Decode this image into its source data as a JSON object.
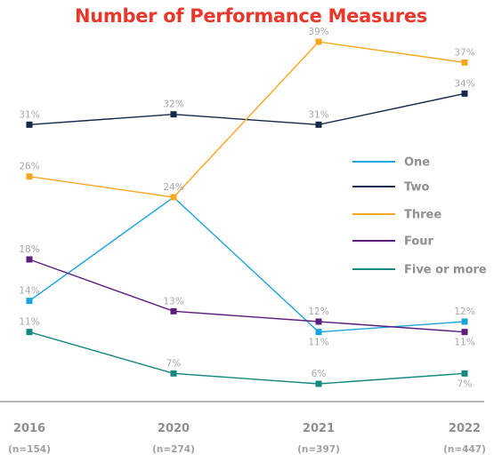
{
  "chart_data": {
    "type": "line",
    "title": "Number of Performance Measures",
    "categories": [
      "2016",
      "2020",
      "2021",
      "2022"
    ],
    "sample_sizes": [
      "(n=154)",
      "(n=274)",
      "(n=397)",
      "(n=447)"
    ],
    "y_unit": "%",
    "ylim": [
      0,
      45
    ],
    "grid": false,
    "legend_position": "right",
    "series": [
      {
        "name": "One",
        "color": "#1ba3dd",
        "values": [
          14,
          24,
          11,
          12
        ],
        "labels": [
          "14%",
          "24%",
          "11%",
          "12%"
        ],
        "label_pos": [
          "above",
          "above",
          "below",
          "above"
        ]
      },
      {
        "name": "Two",
        "color": "#13294b",
        "values": [
          31,
          32,
          31,
          34
        ],
        "labels": [
          "31%",
          "32%",
          "31%",
          "34%"
        ],
        "label_pos": [
          "above",
          "above",
          "above",
          "above"
        ]
      },
      {
        "name": "Three",
        "color": "#f6a623",
        "values": [
          26,
          24,
          39,
          37
        ],
        "labels": [
          "26%",
          "",
          "39%",
          "37%"
        ],
        "label_pos": [
          "above",
          "above",
          "above",
          "above"
        ]
      },
      {
        "name": "Four",
        "color": "#5b1e7d",
        "values": [
          18,
          13,
          12,
          11
        ],
        "labels": [
          "18%",
          "13%",
          "12%",
          "11%"
        ],
        "label_pos": [
          "above",
          "above",
          "above",
          "below"
        ]
      },
      {
        "name": "Five or more",
        "color": "#16897f",
        "values": [
          11,
          7,
          6,
          7
        ],
        "labels": [
          "11%",
          "7%",
          "6%",
          "7%"
        ],
        "label_pos": [
          "above",
          "above",
          "above",
          "below"
        ]
      }
    ]
  }
}
